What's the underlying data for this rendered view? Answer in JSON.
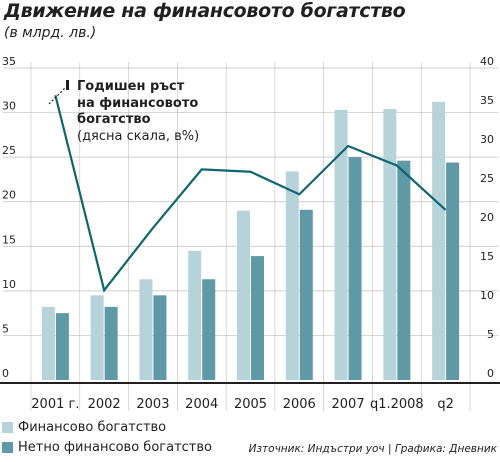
{
  "title": "Движение на финансовото богатство",
  "subtitle": "(в млрд. лв.)",
  "legend": {
    "financial": "Финансово богатство",
    "net": "Нетно финансово богатство"
  },
  "annotation": {
    "line1": "Годишен ръст",
    "line2": "на финансовото",
    "line3": "богатство",
    "line4": "(дясна скала, в%)"
  },
  "source": "Източник: Индъстри уоч | Графика: Дневник",
  "colors": {
    "financial": "#b7d3da",
    "net": "#5f99a5",
    "line": "#0f6670",
    "grid": "#bfbfbf",
    "text": "#231f20"
  },
  "chart_data": {
    "type": "bar",
    "categories": [
      "2001 г.",
      "2002",
      "2003",
      "2004",
      "2005",
      "2006",
      "2007",
      "q1.2008",
      "q2"
    ],
    "series": [
      {
        "name": "Финансово богатство",
        "axis": "left",
        "values": [
          8.2,
          9.5,
          11.3,
          14.5,
          19.0,
          23.4,
          30.3,
          30.4,
          31.2
        ]
      },
      {
        "name": "Нетно финансово богатство",
        "axis": "left",
        "values": [
          7.5,
          8.2,
          9.5,
          11.3,
          13.9,
          19.1,
          25.0,
          24.6,
          24.4
        ]
      },
      {
        "name": "Годишен ръст на финансовото богатство",
        "type": "line",
        "axis": "right",
        "values": [
          36.5,
          11.5,
          19.5,
          27.0,
          26.7,
          23.8,
          30.0,
          27.5,
          21.8
        ]
      }
    ],
    "y_left": {
      "min": 0,
      "max": 35,
      "ticks": [
        0,
        5,
        10,
        15,
        20,
        25,
        30,
        35
      ]
    },
    "y_right": {
      "min": 0,
      "max": 40,
      "ticks": [
        0,
        5,
        10,
        15,
        20,
        25,
        30,
        35,
        40
      ]
    },
    "grid": true
  }
}
